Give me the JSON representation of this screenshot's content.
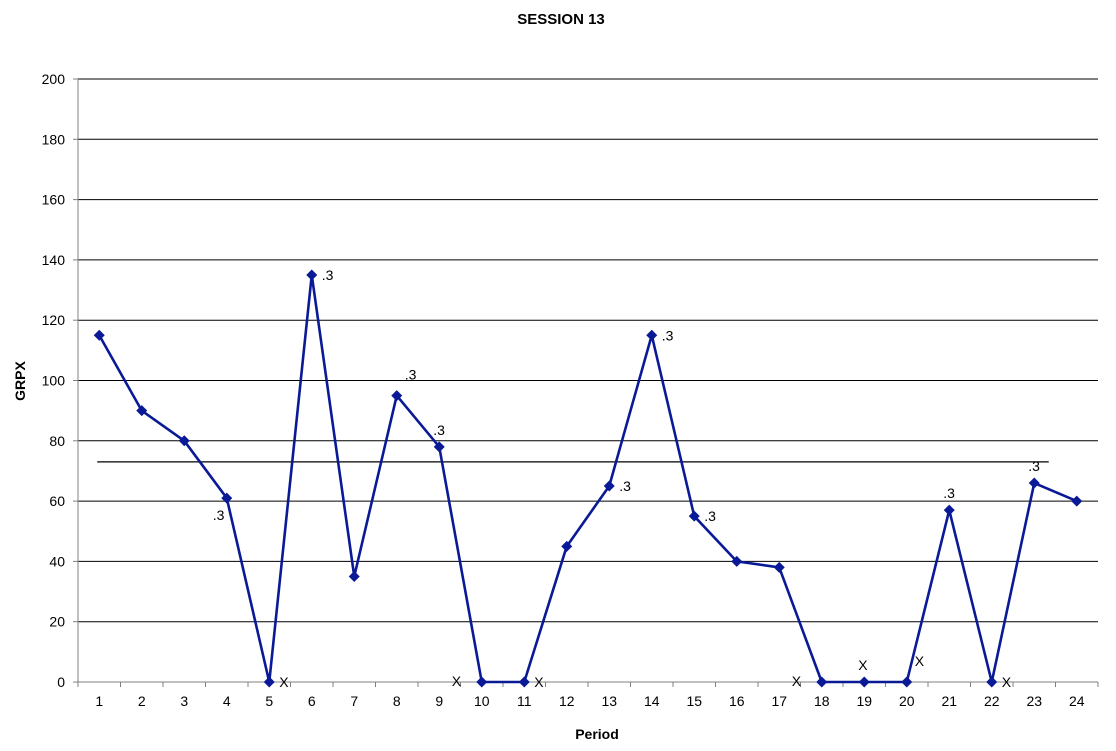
{
  "chart_data": {
    "type": "line",
    "title": "SESSION 13",
    "xlabel": "Period",
    "ylabel": "GRPX",
    "ylim": [
      0,
      200
    ],
    "ytick_step": 20,
    "grid": true,
    "categories": [
      "1",
      "2",
      "3",
      "4",
      "5",
      "6",
      "7",
      "8",
      "9",
      "10",
      "11",
      "12",
      "13",
      "14",
      "15",
      "16",
      "17",
      "18",
      "19",
      "20",
      "21",
      "22",
      "23",
      "24"
    ],
    "series": [
      {
        "values": [
          115,
          90,
          80,
          61,
          0,
          135,
          35,
          95,
          78,
          0,
          0,
          45,
          65,
          115,
          55,
          40,
          38,
          0,
          0,
          0,
          57,
          0,
          66,
          60
        ],
        "color": "#0A1A96"
      }
    ],
    "reference_line": {
      "y": 73,
      "color": "#000000"
    },
    "annotations": [
      {
        "x": "4",
        "y": 61,
        "text": ".3",
        "pos": "below-left"
      },
      {
        "x": "5",
        "y": 0,
        "text": "X",
        "pos": "right"
      },
      {
        "x": "6",
        "y": 135,
        "text": ".3",
        "pos": "right"
      },
      {
        "x": "8",
        "y": 95,
        "text": ".3",
        "pos": "upper-right"
      },
      {
        "x": "9",
        "y": 78,
        "text": ".3",
        "pos": "above"
      },
      {
        "x": "10",
        "y": 0,
        "text": "X",
        "pos": "left"
      },
      {
        "x": "11",
        "y": 0,
        "text": "X",
        "pos": "right"
      },
      {
        "x": "13",
        "y": 65,
        "text": ".3",
        "pos": "right"
      },
      {
        "x": "14",
        "y": 115,
        "text": ".3",
        "pos": "right"
      },
      {
        "x": "15",
        "y": 55,
        "text": ".3",
        "pos": "right"
      },
      {
        "x": "18",
        "y": 0,
        "text": "X",
        "pos": "left"
      },
      {
        "x": "19",
        "y": 0,
        "text": "X",
        "pos": "above"
      },
      {
        "x": "20",
        "y": 0,
        "text": "X",
        "pos": "upper-right"
      },
      {
        "x": "21",
        "y": 57,
        "text": ".3",
        "pos": "above"
      },
      {
        "x": "22",
        "y": 0,
        "text": "X",
        "pos": "right"
      },
      {
        "x": "23",
        "y": 66,
        "text": ".3",
        "pos": "above"
      }
    ]
  }
}
